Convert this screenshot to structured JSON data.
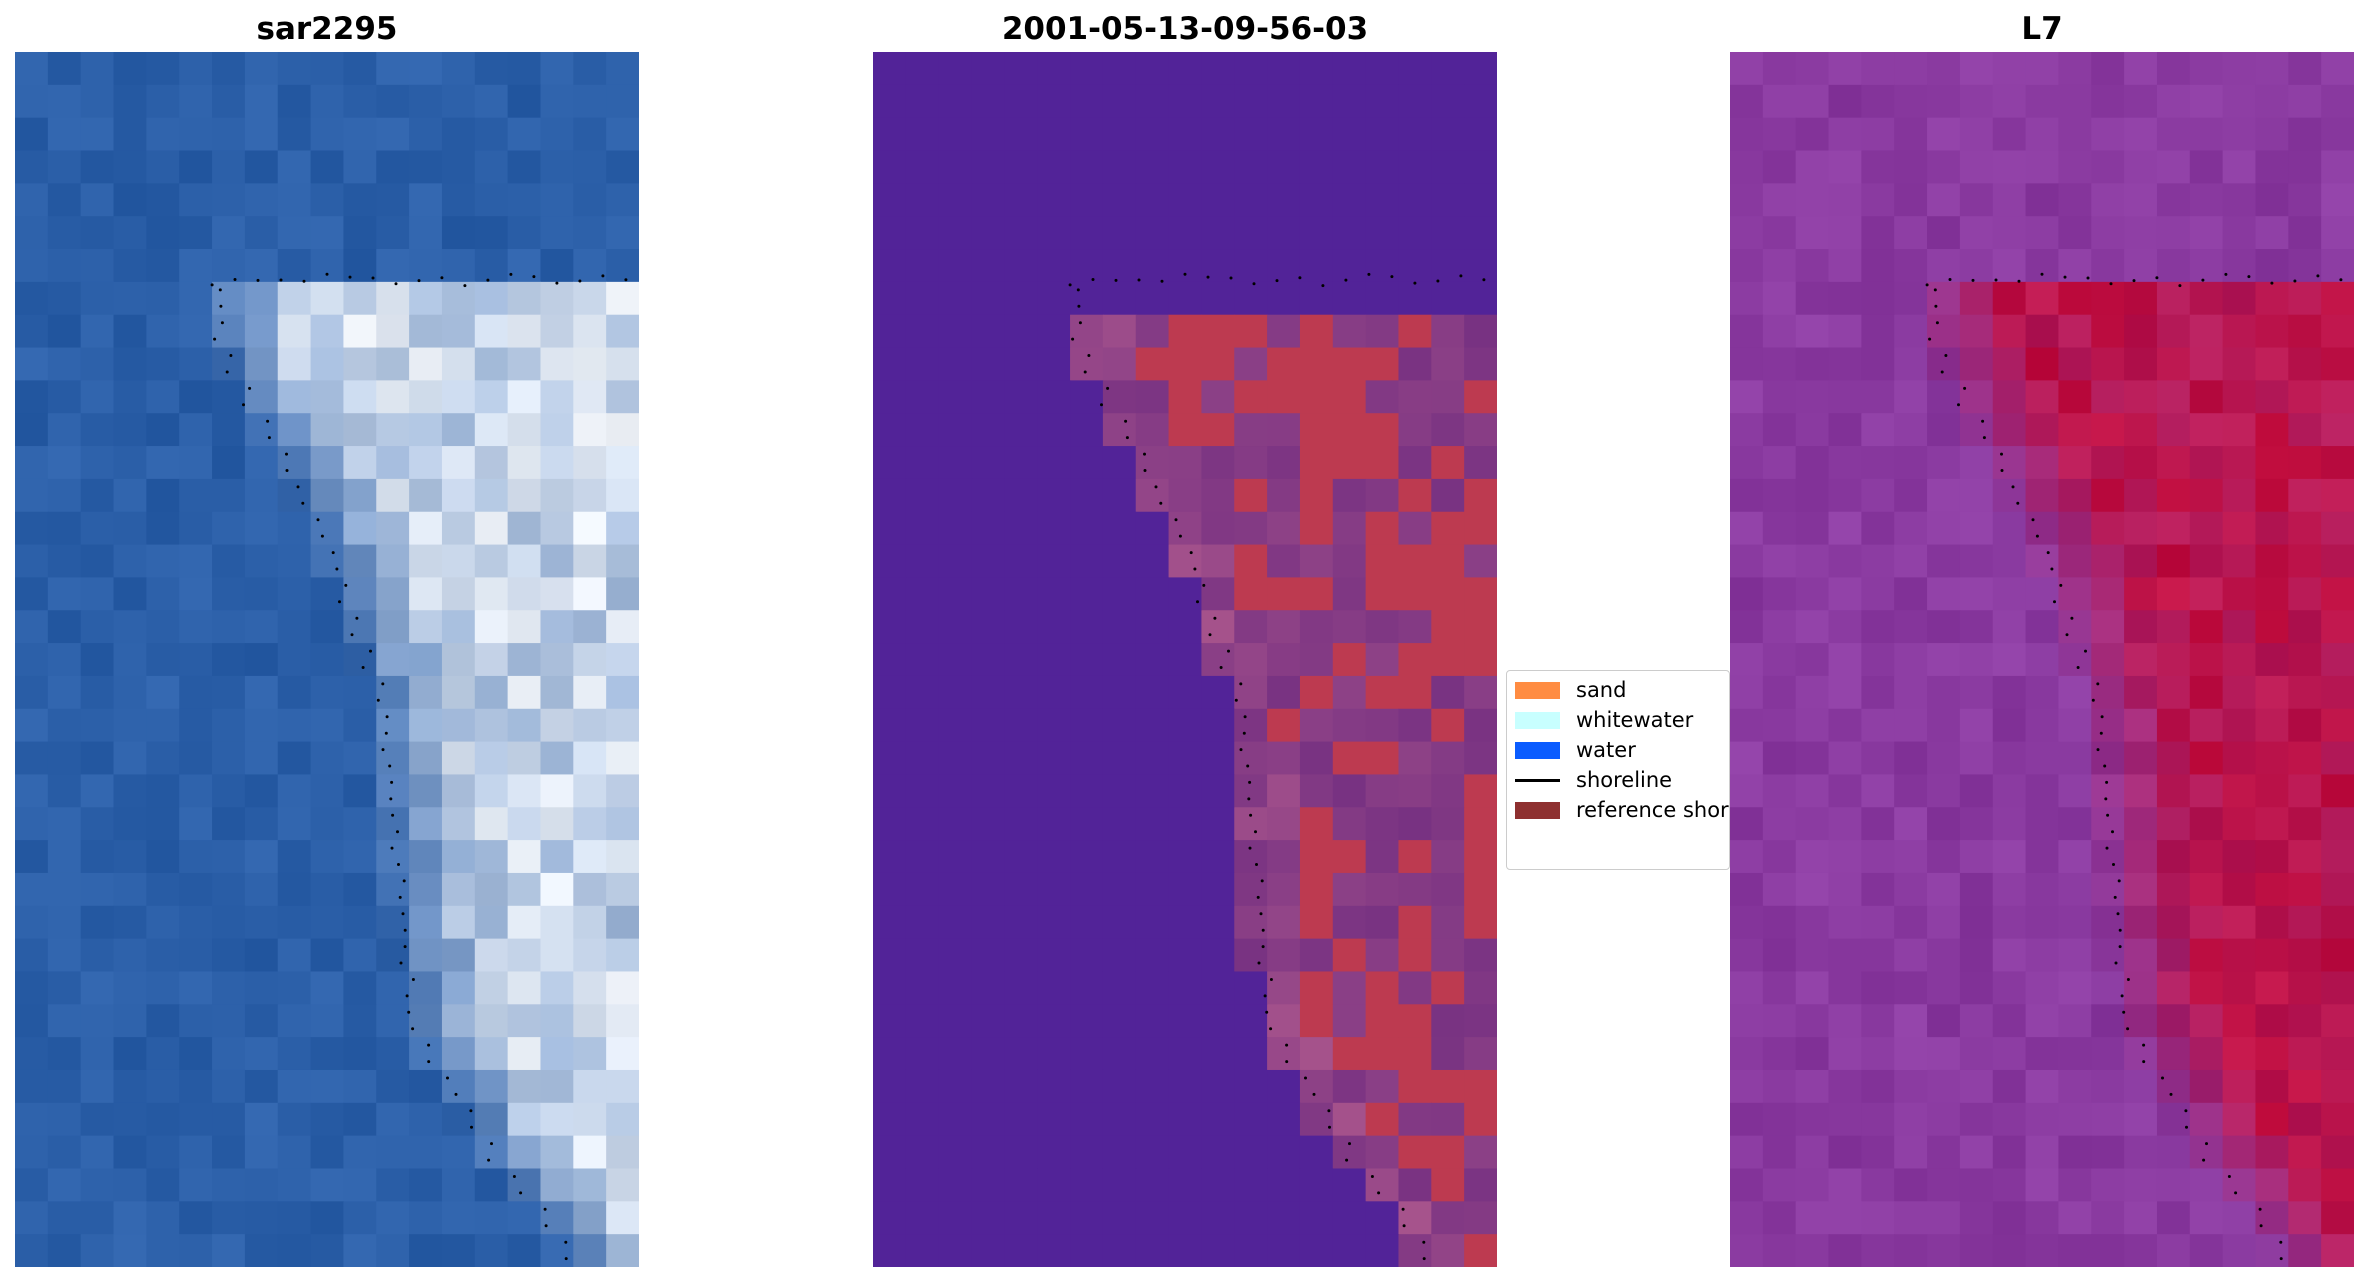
{
  "panels": [
    {
      "title": "sar2295",
      "colormap": "rgb-true-color"
    },
    {
      "title": "2001-05-13-09-56-03",
      "colormap": "classification"
    },
    {
      "title": "L7",
      "colormap": "index-purple-red"
    }
  ],
  "legend": {
    "items": [
      {
        "label": "sand",
        "type": "patch",
        "color": "#ff8c42"
      },
      {
        "label": "whitewater",
        "type": "patch",
        "color": "#c8ffff"
      },
      {
        "label": "water",
        "type": "patch",
        "color": "#0a5cff"
      },
      {
        "label": "shoreline",
        "type": "line",
        "color": "#000000"
      },
      {
        "label": "reference shoreline",
        "type": "patch",
        "color": "#8e3030"
      }
    ]
  },
  "colors": {
    "water_rgb": "#2b5fa8",
    "whitewater_rgb": "#f2f6fb",
    "class_background": "#522398",
    "class_sand": "#bd3a50",
    "index_low": "#8a3aa0",
    "index_high": "#c20e3f"
  }
}
